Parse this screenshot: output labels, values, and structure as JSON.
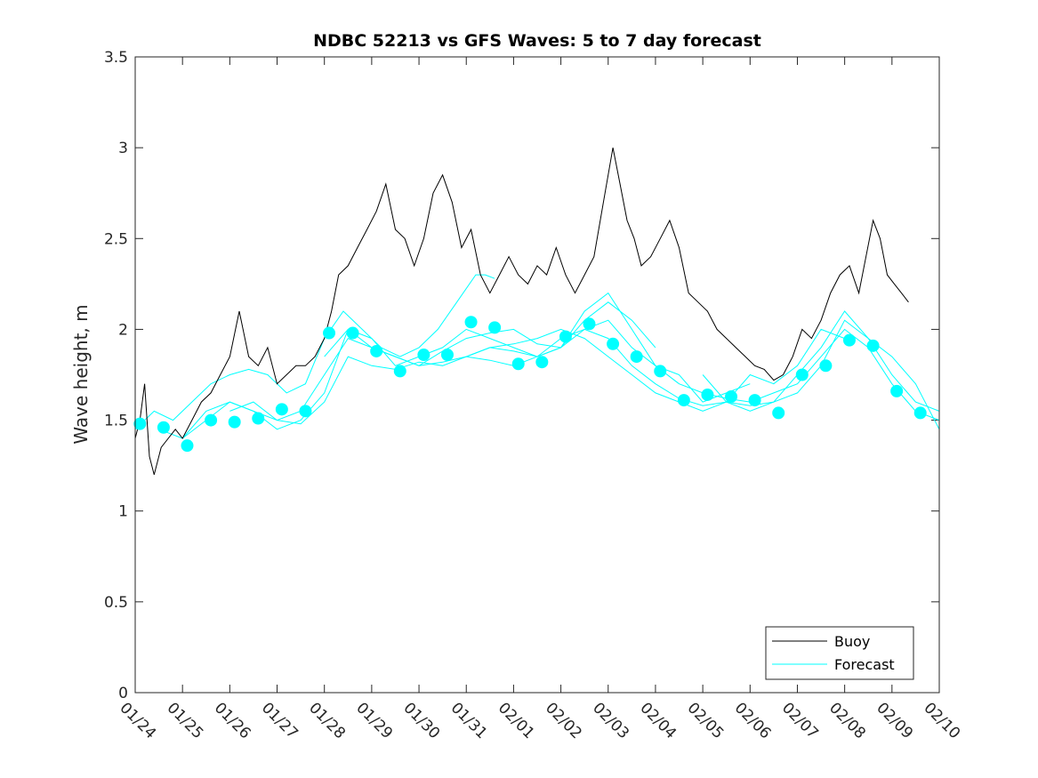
{
  "chart_data": {
    "type": "line",
    "title": "NDBC 52213 vs GFS Waves: 5 to 7 day forecast",
    "xlabel": "",
    "ylabel": "Wave height, m",
    "ylim": [
      0,
      3.5
    ],
    "yticks": [
      0,
      0.5,
      1,
      1.5,
      2,
      2.5,
      3,
      3.5
    ],
    "ytick_labels": [
      "0",
      "0.5",
      "1",
      "1.5",
      "2",
      "2.5",
      "3",
      "3.5"
    ],
    "xlim": [
      0,
      17
    ],
    "xtick_labels": [
      "01/24",
      "01/25",
      "01/26",
      "01/27",
      "01/28",
      "01/29",
      "01/30",
      "01/31",
      "02/01",
      "02/02",
      "02/03",
      "02/04",
      "02/05",
      "02/06",
      "02/07",
      "02/08",
      "02/09",
      "02/10"
    ],
    "legend": {
      "position": "bottom-right",
      "entries": [
        "Buoy",
        "Forecast"
      ]
    },
    "colors": {
      "buoy": "#000000",
      "forecast": "#00ffff",
      "axis": "#262626"
    },
    "series": [
      {
        "name": "Buoy",
        "kind": "line",
        "x": [
          0,
          0.1,
          0.2,
          0.3,
          0.4,
          0.55,
          0.7,
          0.85,
          1.0,
          1.2,
          1.4,
          1.6,
          1.8,
          2.0,
          2.2,
          2.4,
          2.6,
          2.8,
          3.0,
          3.2,
          3.4,
          3.6,
          3.8,
          4.0,
          4.15,
          4.3,
          4.5,
          4.7,
          4.9,
          5.1,
          5.3,
          5.5,
          5.7,
          5.9,
          6.1,
          6.3,
          6.5,
          6.7,
          6.9,
          7.1,
          7.3,
          7.5,
          7.7,
          7.9,
          8.1,
          8.3,
          8.5,
          8.7,
          8.9,
          9.1,
          9.3,
          9.5,
          9.7,
          9.9,
          10.1,
          10.25,
          10.4,
          10.55,
          10.7,
          10.9,
          11.1,
          11.3,
          11.5,
          11.7,
          11.9,
          12.1,
          12.3,
          12.5,
          12.7,
          12.9,
          13.1,
          13.3,
          13.5,
          13.7,
          13.9,
          14.1,
          14.3,
          14.5,
          14.7,
          14.9,
          15.1,
          15.3,
          15.45,
          15.6,
          15.75,
          15.9,
          16.05,
          16.2,
          16.35
        ],
        "y": [
          1.4,
          1.5,
          1.7,
          1.3,
          1.2,
          1.35,
          1.4,
          1.45,
          1.4,
          1.5,
          1.6,
          1.65,
          1.75,
          1.85,
          2.1,
          1.85,
          1.8,
          1.9,
          1.7,
          1.75,
          1.8,
          1.8,
          1.85,
          1.95,
          2.1,
          2.3,
          2.35,
          2.45,
          2.55,
          2.65,
          2.8,
          2.55,
          2.5,
          2.35,
          2.5,
          2.75,
          2.85,
          2.7,
          2.45,
          2.55,
          2.3,
          2.2,
          2.3,
          2.4,
          2.3,
          2.25,
          2.35,
          2.3,
          2.45,
          2.3,
          2.2,
          2.3,
          2.4,
          2.7,
          3.0,
          2.8,
          2.6,
          2.5,
          2.35,
          2.4,
          2.5,
          2.6,
          2.45,
          2.2,
          2.15,
          2.1,
          2.0,
          1.95,
          1.9,
          1.85,
          1.8,
          1.78,
          1.72,
          1.75,
          1.85,
          2.0,
          1.95,
          2.05,
          2.2,
          2.3,
          2.35,
          2.2,
          2.4,
          2.6,
          2.5,
          2.3,
          2.25,
          2.2,
          2.15
        ]
      },
      {
        "name": "Forecast",
        "kind": "line",
        "traces": [
          {
            "x": [
              0,
              0.4,
              0.8,
              1.2,
              1.6,
              2.0,
              2.4,
              2.8,
              3.2,
              3.6,
              4.0,
              4.4,
              4.8,
              5.2,
              5.6,
              6.0,
              6.4,
              6.8,
              7.2,
              7.4,
              7.6
            ],
            "y": [
              1.45,
              1.55,
              1.5,
              1.6,
              1.7,
              1.75,
              1.78,
              1.75,
              1.65,
              1.7,
              1.95,
              2.1,
              2.0,
              1.9,
              1.85,
              1.9,
              2.0,
              2.15,
              2.3,
              2.3,
              2.28
            ]
          },
          {
            "x": [
              0.5,
              1.0,
              1.5,
              2.0,
              2.5,
              3.0,
              3.5,
              4.0,
              4.5,
              5.0,
              5.5,
              6.0,
              6.5,
              7.0,
              7.5,
              8.0,
              8.5,
              9.0,
              9.5,
              10.0,
              10.5,
              11.0
            ],
            "y": [
              1.45,
              1.4,
              1.55,
              1.6,
              1.55,
              1.5,
              1.55,
              1.75,
              1.95,
              1.9,
              1.85,
              1.8,
              1.88,
              1.95,
              1.98,
              2.0,
              1.92,
              1.9,
              2.05,
              2.15,
              2.05,
              1.9
            ]
          },
          {
            "x": [
              1.0,
              1.5,
              2.0,
              2.5,
              3.0,
              3.5,
              4.0,
              4.5,
              5.0,
              5.5,
              6.0,
              6.5,
              7.0,
              7.5,
              8.0,
              8.5,
              9.0,
              9.5,
              10.0,
              10.5,
              11.0,
              11.5,
              12.0,
              12.5,
              13.0
            ],
            "y": [
              1.4,
              1.5,
              1.6,
              1.55,
              1.45,
              1.5,
              1.65,
              2.0,
              1.95,
              1.8,
              1.85,
              1.9,
              2.0,
              1.95,
              1.9,
              1.85,
              1.9,
              2.1,
              2.2,
              2.0,
              1.8,
              1.75,
              1.6,
              1.65,
              1.7
            ]
          },
          {
            "x": [
              2.0,
              2.5,
              3.0,
              3.5,
              4.0,
              4.5,
              5.0,
              5.5,
              6.0,
              6.5,
              7.0,
              7.5,
              8.0,
              8.5,
              9.0,
              9.5,
              10.0,
              10.5,
              11.0,
              11.5,
              12.0,
              12.5,
              13.0,
              13.5,
              14.0,
              14.5,
              15.0
            ],
            "y": [
              1.55,
              1.6,
              1.5,
              1.48,
              1.6,
              1.85,
              1.8,
              1.78,
              1.82,
              1.8,
              1.85,
              1.9,
              1.92,
              1.95,
              2.0,
              1.95,
              1.85,
              1.75,
              1.65,
              1.6,
              1.55,
              1.6,
              1.75,
              1.7,
              1.8,
              2.0,
              1.95
            ]
          },
          {
            "x": [
              4.0,
              4.5,
              5.0,
              5.5,
              6.0,
              6.5,
              7.0,
              7.5,
              8.0,
              8.5,
              9.0,
              9.5,
              10.0,
              10.5,
              11.0,
              11.5,
              12.0,
              12.5,
              13.0,
              13.5,
              14.0,
              14.5,
              15.0,
              15.5,
              16.0,
              16.5,
              17.0
            ],
            "y": [
              1.85,
              2.0,
              1.9,
              1.85,
              1.8,
              1.82,
              1.85,
              1.83,
              1.8,
              1.85,
              1.95,
              2.0,
              1.95,
              1.8,
              1.7,
              1.62,
              1.58,
              1.6,
              1.55,
              1.6,
              1.75,
              1.9,
              2.1,
              1.95,
              1.75,
              1.6,
              1.55
            ]
          },
          {
            "x": [
              7.0,
              7.5,
              8.0,
              8.5,
              9.0,
              9.5,
              10.0,
              10.5,
              11.0,
              11.5,
              12.0,
              12.5,
              13.0,
              13.5,
              14.0,
              14.5,
              15.0,
              15.5,
              16.0,
              16.5,
              17.0
            ],
            "y": [
              1.85,
              1.9,
              1.88,
              1.85,
              1.9,
              2.0,
              2.05,
              1.9,
              1.8,
              1.7,
              1.65,
              1.62,
              1.6,
              1.65,
              1.7,
              1.85,
              2.0,
              1.9,
              1.7,
              1.55,
              1.5
            ]
          },
          {
            "x": [
              12.0,
              12.5,
              13.0,
              13.5,
              14.0,
              14.5,
              15.0,
              15.5,
              16.0,
              16.5,
              17.0
            ],
            "y": [
              1.75,
              1.6,
              1.58,
              1.6,
              1.65,
              1.8,
              2.05,
              1.95,
              1.85,
              1.7,
              1.45
            ]
          }
        ]
      },
      {
        "name": "Forecast points",
        "kind": "scatter",
        "x": [
          0.1,
          0.6,
          1.1,
          1.6,
          2.1,
          2.6,
          3.1,
          3.6,
          4.1,
          4.6,
          5.1,
          5.6,
          6.1,
          6.6,
          7.1,
          7.6,
          8.1,
          8.6,
          9.1,
          9.6,
          10.1,
          10.6,
          11.1,
          11.6,
          12.1,
          12.6,
          13.1,
          13.6,
          14.1,
          14.6,
          15.1,
          15.6,
          16.1,
          16.6
        ],
        "y": [
          1.48,
          1.46,
          1.36,
          1.5,
          1.49,
          1.51,
          1.56,
          1.55,
          1.98,
          1.98,
          1.88,
          1.77,
          1.86,
          1.86,
          2.04,
          2.01,
          1.81,
          1.82,
          1.96,
          2.03,
          1.92,
          1.85,
          1.77,
          1.61,
          1.64,
          1.63,
          1.61,
          1.54,
          1.75,
          1.8,
          1.94,
          1.91,
          1.66,
          1.54
        ]
      }
    ]
  }
}
